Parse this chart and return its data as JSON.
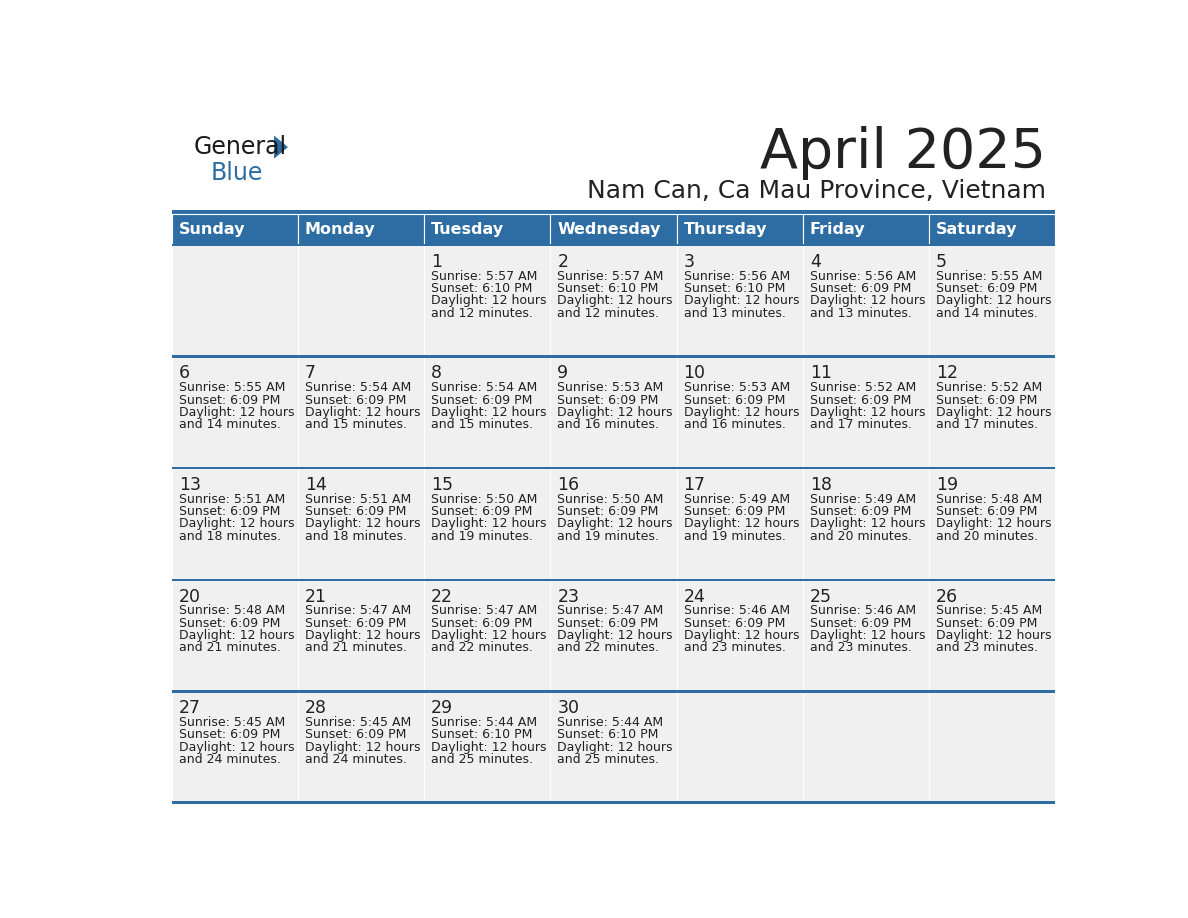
{
  "title": "April 2025",
  "subtitle": "Nam Can, Ca Mau Province, Vietnam",
  "header_bg": "#2E6DA4",
  "header_text_color": "#FFFFFF",
  "cell_bg": "#F0F0F0",
  "border_color": "#2E6DA4",
  "text_color": "#222222",
  "day_names": [
    "Sunday",
    "Monday",
    "Tuesday",
    "Wednesday",
    "Thursday",
    "Friday",
    "Saturday"
  ],
  "days": [
    {
      "date": 1,
      "col": 2,
      "row": 0,
      "sunrise": "5:57 AM",
      "sunset": "6:10 PM",
      "dl_line1": "Daylight: 12 hours",
      "dl_line2": "and 12 minutes."
    },
    {
      "date": 2,
      "col": 3,
      "row": 0,
      "sunrise": "5:57 AM",
      "sunset": "6:10 PM",
      "dl_line1": "Daylight: 12 hours",
      "dl_line2": "and 12 minutes."
    },
    {
      "date": 3,
      "col": 4,
      "row": 0,
      "sunrise": "5:56 AM",
      "sunset": "6:10 PM",
      "dl_line1": "Daylight: 12 hours",
      "dl_line2": "and 13 minutes."
    },
    {
      "date": 4,
      "col": 5,
      "row": 0,
      "sunrise": "5:56 AM",
      "sunset": "6:09 PM",
      "dl_line1": "Daylight: 12 hours",
      "dl_line2": "and 13 minutes."
    },
    {
      "date": 5,
      "col": 6,
      "row": 0,
      "sunrise": "5:55 AM",
      "sunset": "6:09 PM",
      "dl_line1": "Daylight: 12 hours",
      "dl_line2": "and 14 minutes."
    },
    {
      "date": 6,
      "col": 0,
      "row": 1,
      "sunrise": "5:55 AM",
      "sunset": "6:09 PM",
      "dl_line1": "Daylight: 12 hours",
      "dl_line2": "and 14 minutes."
    },
    {
      "date": 7,
      "col": 1,
      "row": 1,
      "sunrise": "5:54 AM",
      "sunset": "6:09 PM",
      "dl_line1": "Daylight: 12 hours",
      "dl_line2": "and 15 minutes."
    },
    {
      "date": 8,
      "col": 2,
      "row": 1,
      "sunrise": "5:54 AM",
      "sunset": "6:09 PM",
      "dl_line1": "Daylight: 12 hours",
      "dl_line2": "and 15 minutes."
    },
    {
      "date": 9,
      "col": 3,
      "row": 1,
      "sunrise": "5:53 AM",
      "sunset": "6:09 PM",
      "dl_line1": "Daylight: 12 hours",
      "dl_line2": "and 16 minutes."
    },
    {
      "date": 10,
      "col": 4,
      "row": 1,
      "sunrise": "5:53 AM",
      "sunset": "6:09 PM",
      "dl_line1": "Daylight: 12 hours",
      "dl_line2": "and 16 minutes."
    },
    {
      "date": 11,
      "col": 5,
      "row": 1,
      "sunrise": "5:52 AM",
      "sunset": "6:09 PM",
      "dl_line1": "Daylight: 12 hours",
      "dl_line2": "and 17 minutes."
    },
    {
      "date": 12,
      "col": 6,
      "row": 1,
      "sunrise": "5:52 AM",
      "sunset": "6:09 PM",
      "dl_line1": "Daylight: 12 hours",
      "dl_line2": "and 17 minutes."
    },
    {
      "date": 13,
      "col": 0,
      "row": 2,
      "sunrise": "5:51 AM",
      "sunset": "6:09 PM",
      "dl_line1": "Daylight: 12 hours",
      "dl_line2": "and 18 minutes."
    },
    {
      "date": 14,
      "col": 1,
      "row": 2,
      "sunrise": "5:51 AM",
      "sunset": "6:09 PM",
      "dl_line1": "Daylight: 12 hours",
      "dl_line2": "and 18 minutes."
    },
    {
      "date": 15,
      "col": 2,
      "row": 2,
      "sunrise": "5:50 AM",
      "sunset": "6:09 PM",
      "dl_line1": "Daylight: 12 hours",
      "dl_line2": "and 19 minutes."
    },
    {
      "date": 16,
      "col": 3,
      "row": 2,
      "sunrise": "5:50 AM",
      "sunset": "6:09 PM",
      "dl_line1": "Daylight: 12 hours",
      "dl_line2": "and 19 minutes."
    },
    {
      "date": 17,
      "col": 4,
      "row": 2,
      "sunrise": "5:49 AM",
      "sunset": "6:09 PM",
      "dl_line1": "Daylight: 12 hours",
      "dl_line2": "and 19 minutes."
    },
    {
      "date": 18,
      "col": 5,
      "row": 2,
      "sunrise": "5:49 AM",
      "sunset": "6:09 PM",
      "dl_line1": "Daylight: 12 hours",
      "dl_line2": "and 20 minutes."
    },
    {
      "date": 19,
      "col": 6,
      "row": 2,
      "sunrise": "5:48 AM",
      "sunset": "6:09 PM",
      "dl_line1": "Daylight: 12 hours",
      "dl_line2": "and 20 minutes."
    },
    {
      "date": 20,
      "col": 0,
      "row": 3,
      "sunrise": "5:48 AM",
      "sunset": "6:09 PM",
      "dl_line1": "Daylight: 12 hours",
      "dl_line2": "and 21 minutes."
    },
    {
      "date": 21,
      "col": 1,
      "row": 3,
      "sunrise": "5:47 AM",
      "sunset": "6:09 PM",
      "dl_line1": "Daylight: 12 hours",
      "dl_line2": "and 21 minutes."
    },
    {
      "date": 22,
      "col": 2,
      "row": 3,
      "sunrise": "5:47 AM",
      "sunset": "6:09 PM",
      "dl_line1": "Daylight: 12 hours",
      "dl_line2": "and 22 minutes."
    },
    {
      "date": 23,
      "col": 3,
      "row": 3,
      "sunrise": "5:47 AM",
      "sunset": "6:09 PM",
      "dl_line1": "Daylight: 12 hours",
      "dl_line2": "and 22 minutes."
    },
    {
      "date": 24,
      "col": 4,
      "row": 3,
      "sunrise": "5:46 AM",
      "sunset": "6:09 PM",
      "dl_line1": "Daylight: 12 hours",
      "dl_line2": "and 23 minutes."
    },
    {
      "date": 25,
      "col": 5,
      "row": 3,
      "sunrise": "5:46 AM",
      "sunset": "6:09 PM",
      "dl_line1": "Daylight: 12 hours",
      "dl_line2": "and 23 minutes."
    },
    {
      "date": 26,
      "col": 6,
      "row": 3,
      "sunrise": "5:45 AM",
      "sunset": "6:09 PM",
      "dl_line1": "Daylight: 12 hours",
      "dl_line2": "and 23 minutes."
    },
    {
      "date": 27,
      "col": 0,
      "row": 4,
      "sunrise": "5:45 AM",
      "sunset": "6:09 PM",
      "dl_line1": "Daylight: 12 hours",
      "dl_line2": "and 24 minutes."
    },
    {
      "date": 28,
      "col": 1,
      "row": 4,
      "sunrise": "5:45 AM",
      "sunset": "6:09 PM",
      "dl_line1": "Daylight: 12 hours",
      "dl_line2": "and 24 minutes."
    },
    {
      "date": 29,
      "col": 2,
      "row": 4,
      "sunrise": "5:44 AM",
      "sunset": "6:10 PM",
      "dl_line1": "Daylight: 12 hours",
      "dl_line2": "and 25 minutes."
    },
    {
      "date": 30,
      "col": 3,
      "row": 4,
      "sunrise": "5:44 AM",
      "sunset": "6:10 PM",
      "dl_line1": "Daylight: 12 hours",
      "dl_line2": "and 25 minutes."
    }
  ]
}
